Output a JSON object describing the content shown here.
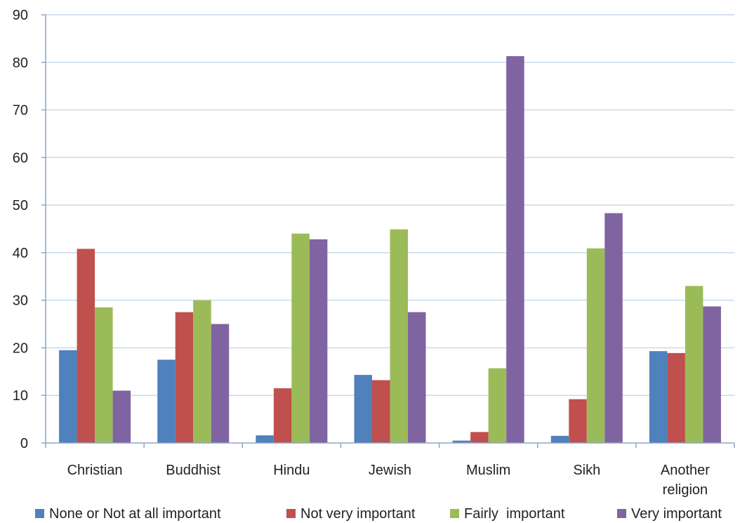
{
  "chart_data": {
    "type": "bar",
    "title": "",
    "xlabel": "",
    "ylabel": "",
    "ylim": [
      0,
      90
    ],
    "yticks": [
      0,
      10,
      20,
      30,
      40,
      50,
      60,
      70,
      80,
      90
    ],
    "grid": true,
    "legend_position": "bottom",
    "categories": [
      "Christian",
      "Buddhist",
      "Hindu",
      "Jewish",
      "Muslim",
      "Sikh",
      "Another religion"
    ],
    "series": [
      {
        "name": "None or Not at all important",
        "color": "#4F81BD",
        "values": [
          19.5,
          17.5,
          1.6,
          14.3,
          0.5,
          1.5,
          19.3
        ]
      },
      {
        "name": "Not very important",
        "color": "#C0504D",
        "values": [
          40.8,
          27.5,
          11.5,
          13.2,
          2.3,
          9.2,
          18.9
        ]
      },
      {
        "name": "Fairly  important",
        "color": "#9BBB59",
        "values": [
          28.5,
          30.0,
          44.0,
          44.9,
          15.7,
          40.9,
          33.0
        ]
      },
      {
        "name": "Very important",
        "color": "#8064A2",
        "values": [
          11.0,
          25.0,
          42.8,
          27.5,
          81.3,
          48.3,
          28.7
        ]
      }
    ]
  }
}
